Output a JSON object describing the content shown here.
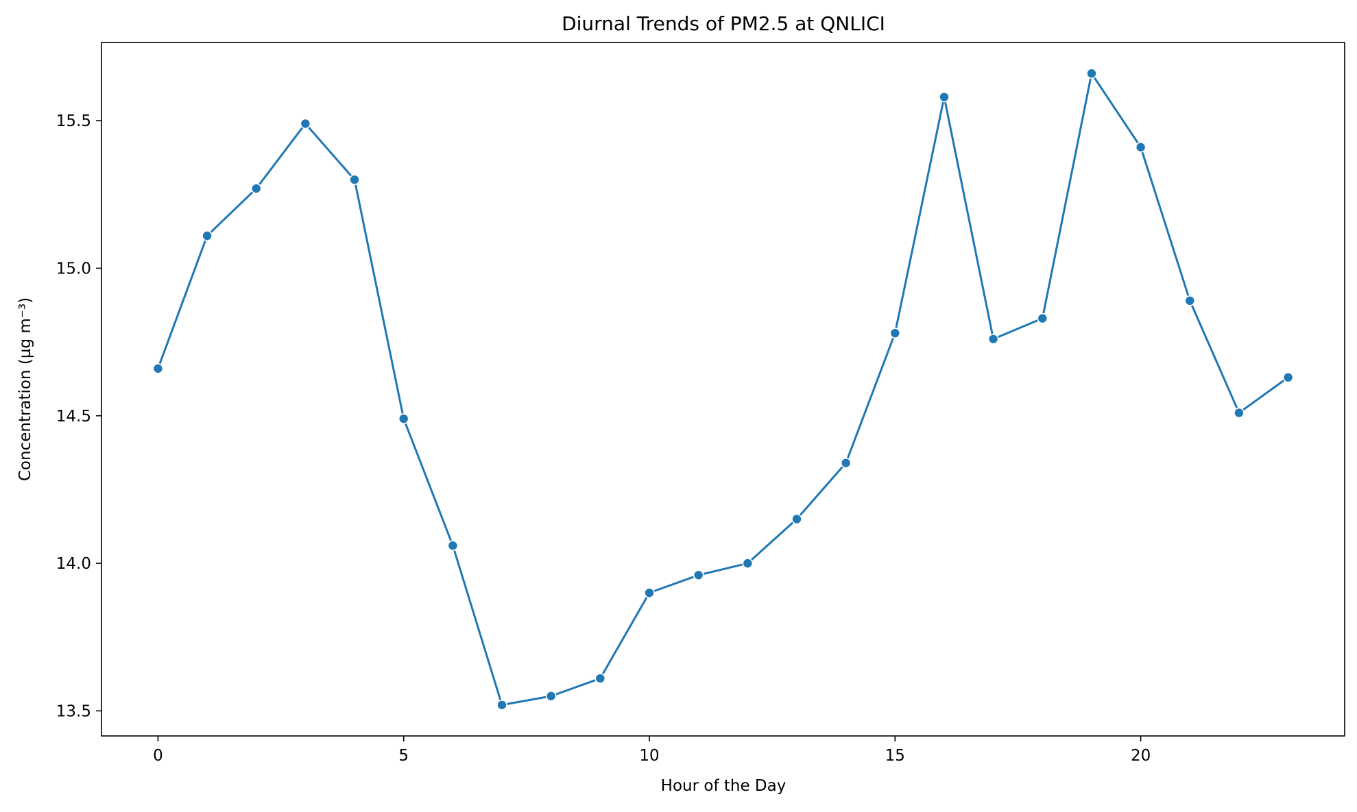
{
  "chart_data": {
    "type": "line",
    "title": "Diurnal Trends of PM2.5 at QNLICI",
    "xlabel": "Hour of the Day",
    "ylabel": "Concentration (µg m⁻³)",
    "x": [
      0,
      1,
      2,
      3,
      4,
      5,
      6,
      7,
      8,
      9,
      10,
      11,
      12,
      13,
      14,
      15,
      16,
      17,
      18,
      19,
      20,
      21,
      22,
      23
    ],
    "series": [
      {
        "values": [
          14.66,
          15.11,
          15.27,
          15.49,
          15.3,
          14.49,
          14.06,
          13.52,
          13.55,
          13.61,
          13.9,
          13.96,
          14.0,
          14.15,
          14.34,
          14.78,
          15.58,
          14.76,
          14.83,
          15.66,
          15.41,
          14.89,
          14.51,
          14.63
        ],
        "color": "#1f77b4",
        "marker": "circle"
      }
    ],
    "xlim": [
      -1.15,
      24.15
    ],
    "ylim": [
      13.415,
      15.765
    ],
    "xticks": [
      0,
      5,
      10,
      15,
      20
    ],
    "xtick_labels": [
      "0",
      "5",
      "10",
      "15",
      "20"
    ],
    "yticks": [
      13.5,
      14.0,
      14.5,
      15.0,
      15.5
    ],
    "ytick_labels": [
      "13.5",
      "14.0",
      "14.5",
      "15.0",
      "15.5"
    ],
    "grid": false,
    "legend": "none"
  }
}
